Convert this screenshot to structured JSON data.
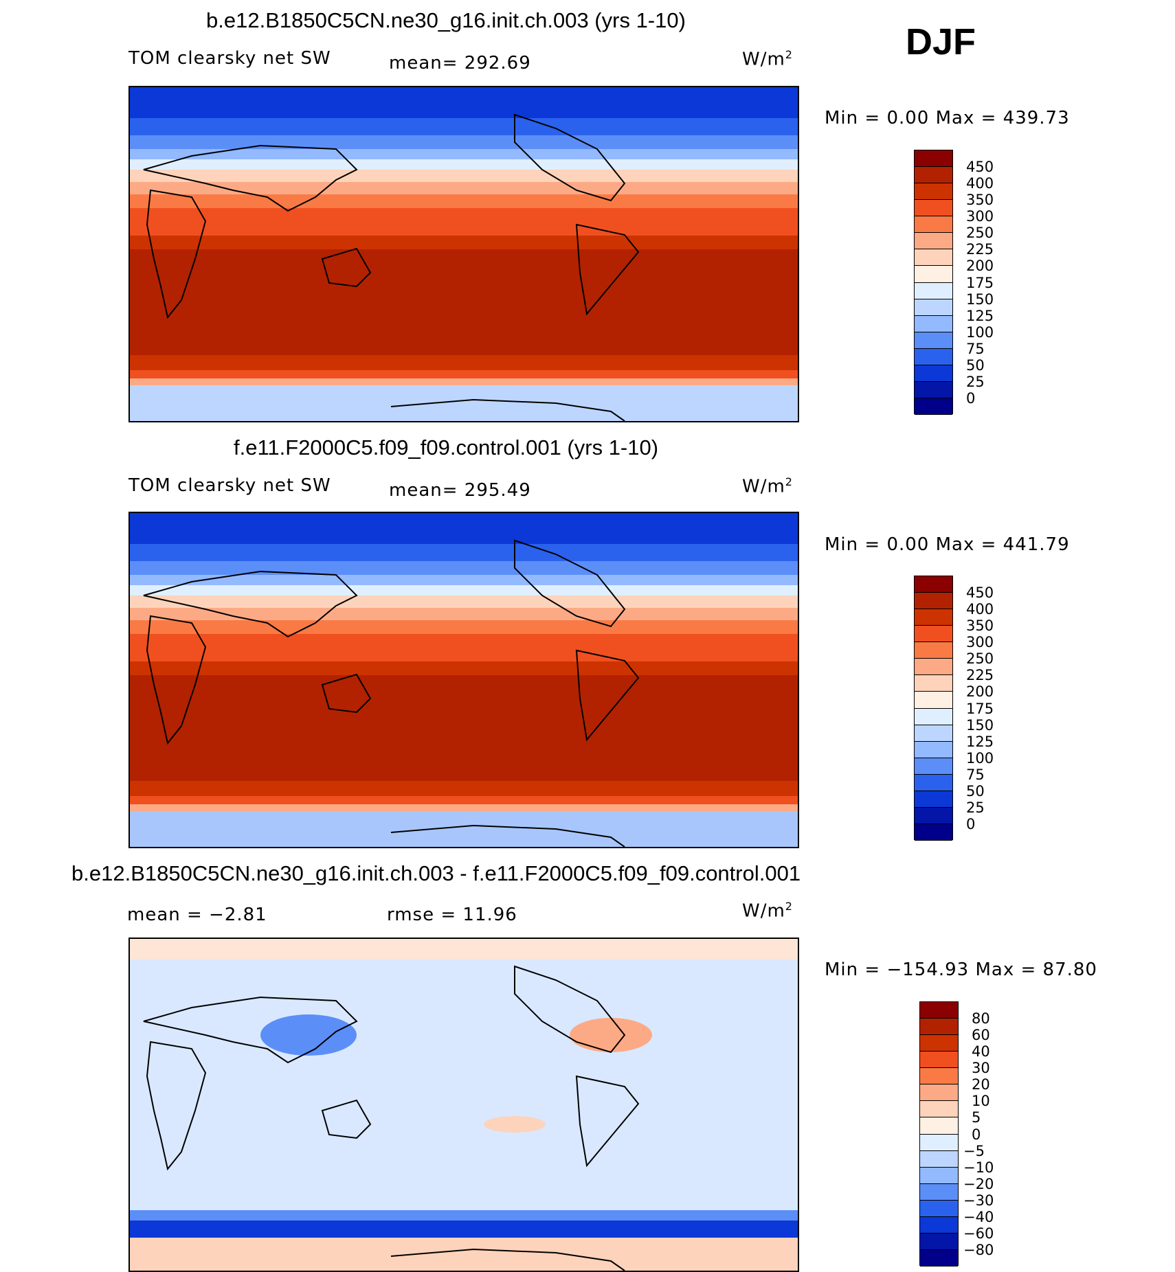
{
  "season": "DJF",
  "units_word": "W/m",
  "units_exp": "2",
  "panels": [
    {
      "title": "b.e12.B1850C5CN.ne30_g16.init.ch.003 (yrs 1-10)",
      "variable": "TOM clearsky net SW",
      "stat1": "mean= 292.69",
      "stat2": "",
      "minmax": "Min =    0.00 Max = 439.73",
      "colorbar": {
        "labels": [
          "450",
          "400",
          "350",
          "300",
          "250",
          "225",
          "200",
          "175",
          "150",
          "125",
          "100",
          "75",
          "50",
          "25",
          "0"
        ],
        "colors": [
          "#8b0000",
          "#b22200",
          "#cd3300",
          "#f05020",
          "#fa7a45",
          "#fcaa85",
          "#fdd3bb",
          "#fff0e4",
          "#e0efff",
          "#bcd6ff",
          "#93b9ff",
          "#5c8ef8",
          "#2a62ee",
          "#0b38d6",
          "#0316a8",
          "#00008a"
        ]
      }
    },
    {
      "title": "f.e11.F2000C5.f09_f09.control.001 (yrs 1-10)",
      "variable": "TOM clearsky net SW",
      "stat1": "mean= 295.49",
      "stat2": "",
      "minmax": "Min =    0.00 Max = 441.79",
      "colorbar": {
        "labels": [
          "450",
          "400",
          "350",
          "300",
          "250",
          "225",
          "200",
          "175",
          "150",
          "125",
          "100",
          "75",
          "50",
          "25",
          "0"
        ],
        "colors": [
          "#8b0000",
          "#b22200",
          "#cd3300",
          "#f05020",
          "#fa7a45",
          "#fcaa85",
          "#fdd3bb",
          "#fff0e4",
          "#e0efff",
          "#bcd6ff",
          "#93b9ff",
          "#5c8ef8",
          "#2a62ee",
          "#0b38d6",
          "#0316a8",
          "#00008a"
        ]
      }
    },
    {
      "title": "b.e12.B1850C5CN.ne30_g16.init.ch.003 - f.e11.F2000C5.f09_f09.control.001",
      "variable": "",
      "stat1": "mean =   −2.81",
      "stat2": "rmse =   11.96",
      "minmax": "Min = −154.93 Max =   87.80",
      "colorbar": {
        "labels": [
          "80",
          "60",
          "40",
          "30",
          "20",
          "10",
          "5",
          "0",
          "−5",
          "−10",
          "−20",
          "−30",
          "−40",
          "−60",
          "−80"
        ],
        "colors": [
          "#8b0000",
          "#b22200",
          "#cd3300",
          "#f05020",
          "#fa7a45",
          "#fcaa85",
          "#fdd3bb",
          "#fff0e4",
          "#e0efff",
          "#bcd6ff",
          "#93b9ff",
          "#5c8ef8",
          "#2a62ee",
          "#0b38d6",
          "#0316a8",
          "#00008a"
        ]
      }
    }
  ]
}
